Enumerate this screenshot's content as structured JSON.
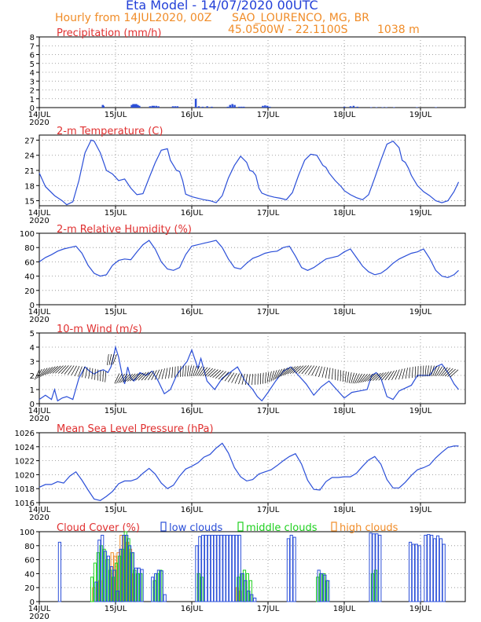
{
  "header": {
    "title": "Eta Model - 14/07/2020 00UTC",
    "subtitle": "Hourly from 14JUL2020, 00Z",
    "location": "SAO_LOURENCO, MG, BR",
    "coords": "45.0500W - 22.1100S",
    "elevation": "1038  m"
  },
  "colors": {
    "title": "#2340d8",
    "orange": "#f08c28",
    "red": "#e03030",
    "line": "#2b4fd8",
    "bar": "#2b4fd8",
    "green": "#1ed01e",
    "grid": "#888888"
  },
  "x_axis": {
    "ticks": [
      {
        "day": 0,
        "label": "14JUL",
        "sub": "2020"
      },
      {
        "day": 1,
        "label": "15JUL",
        "sub": ""
      },
      {
        "day": 2,
        "label": "16JUL",
        "sub": ""
      },
      {
        "day": 3,
        "label": "17JUL",
        "sub": ""
      },
      {
        "day": 4,
        "label": "18JUL",
        "sub": ""
      },
      {
        "day": 5,
        "label": "19JUL",
        "sub": ""
      }
    ],
    "range_days": [
      0,
      5.5
    ]
  },
  "chart_data": [
    {
      "type": "bar",
      "title": "Precipitation (mm/h)",
      "ylim": [
        0,
        8
      ],
      "yticks": [
        "0",
        "1",
        "2",
        "3",
        "4",
        "5",
        "6",
        "7",
        "8"
      ],
      "x": [
        0.83,
        0.84,
        1.21,
        1.23,
        1.25,
        1.27,
        1.29,
        1.31,
        1.45,
        1.48,
        1.5,
        1.53,
        1.56,
        1.75,
        1.78,
        1.81,
        2.05,
        2.09,
        2.14,
        2.2,
        2.26,
        2.47,
        2.5,
        2.53,
        2.56,
        2.62,
        2.65,
        2.68,
        2.93,
        2.96,
        2.99,
        3.02,
        4.0,
        4.08,
        4.12,
        4.17,
        4.35,
        4.42,
        4.5,
        4.55,
        4.65,
        4.95,
        5.2
      ],
      "values": [
        0.3,
        0.2,
        0.3,
        0.4,
        0.4,
        0.4,
        0.3,
        0.2,
        0.15,
        0.2,
        0.2,
        0.2,
        0.15,
        0.15,
        0.15,
        0.15,
        1.0,
        0.15,
        0.1,
        0.15,
        0.1,
        0.1,
        0.3,
        0.4,
        0.3,
        0.1,
        0.1,
        0.1,
        0.2,
        0.25,
        0.2,
        0.1,
        0.1,
        0.15,
        0.2,
        0.1,
        0.05,
        0.05,
        0.05,
        0.05,
        0.05,
        0.05,
        0.05
      ]
    },
    {
      "type": "line",
      "title": "2-m Temperature (C)",
      "ylim": [
        14,
        28
      ],
      "yticks": [
        "15",
        "18",
        "21",
        "24",
        "27"
      ],
      "ytick_values": [
        15,
        18,
        21,
        24,
        27
      ],
      "x": [
        0,
        0.08,
        0.2,
        0.3,
        0.36,
        0.44,
        0.52,
        0.6,
        0.68,
        0.72,
        0.8,
        0.88,
        0.96,
        1.04,
        1.12,
        1.2,
        1.28,
        1.36,
        1.44,
        1.52,
        1.6,
        1.68,
        1.72,
        1.8,
        1.84,
        1.88,
        1.92,
        2.0,
        2.08,
        2.16,
        2.24,
        2.32,
        2.4,
        2.48,
        2.56,
        2.64,
        2.72,
        2.76,
        2.8,
        2.84,
        2.88,
        2.92,
        3.0,
        3.08,
        3.16,
        3.24,
        3.32,
        3.4,
        3.48,
        3.56,
        3.64,
        3.72,
        3.76,
        3.8,
        3.88,
        3.96,
        4.0,
        4.08,
        4.16,
        4.24,
        4.32,
        4.4,
        4.48,
        4.56,
        4.64,
        4.72,
        4.76,
        4.8,
        4.84,
        4.88,
        4.96,
        5.04,
        5.12,
        5.2,
        5.28,
        5.36,
        5.44,
        5.5
      ],
      "values": [
        20.5,
        17.8,
        16.0,
        15.0,
        14.2,
        14.8,
        19.0,
        24.5,
        27.0,
        26.8,
        24.5,
        21.0,
        20.3,
        19.0,
        19.3,
        17.5,
        16.2,
        16.4,
        19.5,
        22.5,
        25.0,
        25.3,
        23.0,
        21.0,
        20.8,
        19.0,
        16.3,
        15.8,
        15.5,
        15.2,
        15.0,
        14.6,
        16.0,
        19.5,
        22.0,
        23.8,
        22.6,
        21.0,
        20.8,
        20.0,
        17.5,
        16.5,
        16.0,
        15.7,
        15.5,
        15.2,
        16.6,
        20.0,
        23.0,
        24.2,
        24.0,
        22.0,
        21.6,
        20.5,
        19.0,
        17.8,
        17.0,
        16.2,
        15.6,
        15.2,
        16.2,
        19.5,
        23.0,
        26.2,
        26.8,
        25.5,
        23.0,
        22.6,
        21.5,
        20.0,
        18.0,
        16.8,
        16.0,
        15.0,
        14.6,
        15.0,
        16.8,
        18.7
      ]
    },
    {
      "type": "line",
      "title": "2-m Relative Humidity (%)",
      "ylim": [
        0,
        100
      ],
      "yticks": [
        "0",
        "20",
        "40",
        "60",
        "80",
        "100"
      ],
      "ytick_values": [
        0,
        20,
        40,
        60,
        80,
        100
      ],
      "x": [
        0,
        0.08,
        0.16,
        0.24,
        0.32,
        0.4,
        0.48,
        0.56,
        0.64,
        0.72,
        0.8,
        0.88,
        0.96,
        1.04,
        1.12,
        1.2,
        1.28,
        1.36,
        1.44,
        1.52,
        1.6,
        1.68,
        1.76,
        1.84,
        1.92,
        2.0,
        2.08,
        2.16,
        2.24,
        2.32,
        2.4,
        2.48,
        2.56,
        2.64,
        2.72,
        2.8,
        2.88,
        2.96,
        3.04,
        3.12,
        3.2,
        3.28,
        3.36,
        3.44,
        3.52,
        3.6,
        3.68,
        3.76,
        3.84,
        3.92,
        4.0,
        4.08,
        4.16,
        4.24,
        4.32,
        4.4,
        4.48,
        4.56,
        4.64,
        4.72,
        4.8,
        4.88,
        4.96,
        5.04,
        5.12,
        5.2,
        5.28,
        5.36,
        5.44,
        5.5
      ],
      "values": [
        60,
        66,
        70,
        75,
        78,
        80,
        82,
        72,
        55,
        44,
        40,
        42,
        55,
        62,
        64,
        63,
        74,
        84,
        90,
        78,
        60,
        50,
        48,
        52,
        70,
        82,
        84,
        86,
        88,
        90,
        80,
        64,
        52,
        50,
        58,
        65,
        68,
        72,
        74,
        75,
        80,
        82,
        68,
        52,
        48,
        52,
        58,
        64,
        66,
        68,
        74,
        78,
        66,
        54,
        46,
        42,
        44,
        50,
        58,
        64,
        68,
        72,
        74,
        78,
        65,
        48,
        40,
        38,
        42,
        48
      ],
      "note": "tail values extend to 5.5 days"
    },
    {
      "type": "line",
      "title": "10-m Wind (m/s)",
      "ylim": [
        0,
        5
      ],
      "yticks": [
        "0",
        "1",
        "2",
        "3",
        "4",
        "5"
      ],
      "ytick_values": [
        0,
        1,
        2,
        3,
        4,
        5
      ],
      "x": [
        0,
        0.08,
        0.16,
        0.2,
        0.24,
        0.3,
        0.36,
        0.44,
        0.52,
        0.6,
        0.66,
        0.72,
        0.78,
        0.84,
        0.9,
        0.94,
        0.98,
        1.0,
        1.04,
        1.08,
        1.12,
        1.16,
        1.2,
        1.24,
        1.32,
        1.4,
        1.48,
        1.56,
        1.64,
        1.72,
        1.8,
        1.88,
        1.94,
        2.0,
        2.08,
        2.12,
        2.16,
        2.2,
        2.3,
        2.4,
        2.5,
        2.6,
        2.7,
        2.8,
        2.86,
        2.92,
        3.0,
        3.1,
        3.2,
        3.3,
        3.4,
        3.5,
        3.6,
        3.7,
        3.8,
        3.9,
        4.0,
        4.1,
        4.2,
        4.3,
        4.36,
        4.42,
        4.48,
        4.56,
        4.64,
        4.72,
        4.8,
        4.88,
        4.96,
        5.04,
        5.12,
        5.2,
        5.28,
        5.36,
        5.44,
        5.5
      ],
      "values": [
        0.3,
        0.6,
        0.3,
        1.0,
        0.2,
        0.4,
        0.5,
        0.3,
        1.8,
        2.6,
        2.3,
        2.1,
        2.3,
        2.4,
        2.2,
        2.6,
        3.5,
        4.0,
        3.3,
        2.2,
        1.4,
        2.6,
        1.8,
        1.6,
        2.2,
        2.0,
        2.3,
        1.6,
        0.7,
        1.0,
        2.0,
        2.6,
        3.0,
        3.8,
        2.5,
        3.2,
        2.4,
        1.6,
        1.0,
        1.8,
        2.2,
        2.6,
        1.6,
        1.0,
        0.5,
        0.2,
        0.8,
        1.6,
        2.3,
        2.6,
        2.0,
        1.4,
        0.6,
        1.2,
        1.6,
        1.0,
        0.4,
        0.8,
        0.9,
        1.0,
        2.0,
        2.2,
        1.8,
        0.5,
        0.3,
        0.9,
        1.1,
        1.3,
        2.0,
        2.0,
        2.0,
        2.6,
        2.8,
        2.2,
        1.4,
        1.0
      ]
    },
    {
      "type": "line",
      "title": "Mean Sea Level Pressure (hPa)",
      "ylim": [
        1016,
        1026
      ],
      "yticks": [
        "1016",
        "1018",
        "1020",
        "1022",
        "1024",
        "1026"
      ],
      "ytick_values": [
        1016,
        1018,
        1020,
        1022,
        1024,
        1026
      ],
      "x": [
        0,
        0.08,
        0.16,
        0.24,
        0.32,
        0.4,
        0.48,
        0.56,
        0.64,
        0.72,
        0.8,
        0.88,
        0.96,
        1.04,
        1.12,
        1.2,
        1.28,
        1.36,
        1.44,
        1.52,
        1.6,
        1.68,
        1.76,
        1.84,
        1.92,
        2.0,
        2.08,
        2.16,
        2.24,
        2.32,
        2.4,
        2.48,
        2.56,
        2.64,
        2.72,
        2.8,
        2.88,
        2.96,
        3.04,
        3.12,
        3.2,
        3.28,
        3.36,
        3.44,
        3.52,
        3.6,
        3.68,
        3.76,
        3.84,
        3.92,
        4.0,
        4.08,
        4.16,
        4.24,
        4.32,
        4.4,
        4.48,
        4.56,
        4.64,
        4.72,
        4.8,
        4.88,
        4.96,
        5.04,
        5.12,
        5.2,
        5.28,
        5.36,
        5.44,
        5.5
      ],
      "values": [
        1018.2,
        1018.6,
        1018.6,
        1019.0,
        1018.8,
        1019.8,
        1020.4,
        1019.2,
        1017.8,
        1016.5,
        1016.3,
        1016.9,
        1017.6,
        1018.7,
        1019.1,
        1019.1,
        1019.4,
        1020.2,
        1020.9,
        1020.1,
        1018.8,
        1018.0,
        1018.5,
        1019.8,
        1020.8,
        1021.2,
        1021.7,
        1022.5,
        1022.9,
        1023.8,
        1024.5,
        1023.1,
        1021.0,
        1019.7,
        1019.1,
        1019.3,
        1020.1,
        1020.4,
        1020.7,
        1021.3,
        1022.0,
        1022.6,
        1023.0,
        1021.5,
        1019.2,
        1017.9,
        1017.8,
        1019.0,
        1019.6,
        1019.6,
        1019.7,
        1019.7,
        1020.2,
        1021.2,
        1022.1,
        1022.6,
        1021.5,
        1019.3,
        1018.1,
        1018.1,
        1018.9,
        1019.9,
        1020.7,
        1021.0,
        1021.4,
        1022.4,
        1023.2,
        1023.9,
        1024.1,
        1024.1
      ]
    },
    {
      "type": "bar",
      "title": "Cloud Cover (%)",
      "ylim": [
        0,
        100
      ],
      "yticks": [
        "0",
        "20",
        "40",
        "60",
        "80",
        "100"
      ],
      "ytick_values": [
        0,
        20,
        40,
        60,
        80,
        100
      ],
      "legend": [
        "low clouds",
        "middle clouds",
        "high clouds"
      ],
      "series": [
        {
          "name": "low clouds",
          "x": [
            0.25,
            0.73,
            0.77,
            0.81,
            0.85,
            0.89,
            0.93,
            0.97,
            1.01,
            1.05,
            1.09,
            1.13,
            1.17,
            1.21,
            1.25,
            1.29,
            1.33,
            1.47,
            1.51,
            1.55,
            1.59,
            1.63,
            2.05,
            2.09,
            2.13,
            2.17,
            2.21,
            2.25,
            2.29,
            2.33,
            2.37,
            2.41,
            2.45,
            2.49,
            2.53,
            2.57,
            2.61,
            2.65,
            2.69,
            2.73,
            2.77,
            2.81,
            3.25,
            3.29,
            3.33,
            3.65,
            3.69,
            3.73,
            3.77,
            4.33,
            4.37,
            4.41,
            4.45,
            4.85,
            4.89,
            4.93,
            4.97,
            5.05,
            5.09,
            5.13,
            5.17,
            5.21,
            5.25,
            5.29
          ],
          "values": [
            85,
            28,
            88,
            95,
            72,
            65,
            50,
            45,
            15,
            75,
            95,
            95,
            80,
            70,
            48,
            48,
            46,
            35,
            40,
            45,
            44,
            10,
            80,
            93,
            95,
            95,
            95,
            95,
            95,
            95,
            95,
            95,
            95,
            95,
            95,
            95,
            95,
            40,
            30,
            15,
            10,
            5,
            90,
            95,
            92,
            45,
            40,
            38,
            30,
            98,
            97,
            97,
            95,
            85,
            82,
            82,
            80,
            95,
            96,
            95,
            90,
            94,
            90,
            82
          ]
        },
        {
          "name": "middle clouds",
          "x": [
            0.69,
            0.73,
            0.77,
            0.81,
            0.85,
            0.89,
            0.93,
            0.97,
            1.01,
            1.05,
            1.09,
            1.13,
            1.17,
            1.21,
            1.25,
            1.29,
            1.33,
            1.51,
            1.55,
            1.59,
            2.09,
            2.13,
            2.61,
            2.65,
            2.69,
            2.73,
            2.77,
            3.65,
            3.69,
            3.73,
            3.77,
            4.37,
            4.41
          ],
          "values": [
            35,
            55,
            70,
            80,
            75,
            60,
            45,
            35,
            55,
            65,
            75,
            100,
            90,
            70,
            45,
            40,
            40,
            30,
            40,
            45,
            40,
            35,
            35,
            40,
            45,
            40,
            30,
            35,
            40,
            40,
            30,
            40,
            45
          ]
        },
        {
          "name": "high clouds",
          "x": [
            0.73,
            0.81,
            0.97,
            1.01,
            1.05,
            1.09,
            1.13,
            1.17,
            1.21,
            1.25,
            2.61,
            2.65
          ],
          "values": [
            20,
            30,
            70,
            65,
            70,
            95,
            95,
            85,
            75,
            40,
            20,
            15
          ]
        }
      ]
    }
  ]
}
